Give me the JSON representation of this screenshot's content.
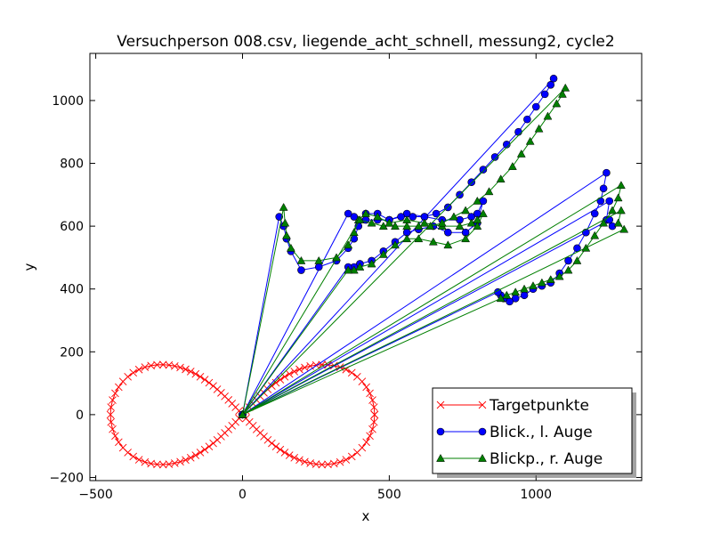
{
  "chart_data": {
    "type": "line",
    "title": "Versuchperson 008.csv, liegende_acht_schnell, messung2, cycle2",
    "xlabel": "x",
    "ylabel": "y",
    "xlim": [
      -520,
      1360
    ],
    "ylim": [
      -210,
      1150
    ],
    "xticks": [
      -500,
      0,
      500,
      1000
    ],
    "yticks": [
      -200,
      0,
      200,
      400,
      600,
      800,
      1000
    ],
    "tick_labels_x": [
      "−500",
      "0",
      "500",
      "1000"
    ],
    "tick_labels_y": [
      "−200",
      "0",
      "200",
      "400",
      "600",
      "800",
      "1000"
    ],
    "grid": false,
    "legend_position": "lower-right",
    "series": [
      {
        "name": "Targetpunkte",
        "color": "#ff0000",
        "marker": "x",
        "kind": "lemniscate",
        "a": 450,
        "points": 120
      },
      {
        "name": "Blick., l. Auge",
        "color": "#0000ff",
        "marker": "circle",
        "x": [
          0,
          125,
          140,
          150,
          165,
          200,
          260,
          320,
          360,
          380,
          395,
          420,
          460,
          500,
          560,
          620,
          680,
          740,
          780,
          800,
          820,
          800,
          760,
          700,
          650,
          600,
          560,
          520,
          480,
          440,
          400,
          380,
          360,
          0,
          1060,
          1050,
          1030,
          1000,
          970,
          940,
          900,
          860,
          820,
          780,
          740,
          700,
          660,
          620,
          580,
          540,
          500,
          460,
          420,
          380,
          360,
          0,
          1240,
          1230,
          1220,
          1200,
          1170,
          1140,
          1110,
          1080,
          1050,
          1020,
          990,
          960,
          930,
          910,
          890,
          880,
          870,
          0,
          1250,
          1240,
          1260,
          1250,
          0
        ],
        "y": [
          0,
          630,
          600,
          560,
          520,
          460,
          470,
          490,
          530,
          560,
          600,
          640,
          640,
          620,
          640,
          630,
          620,
          620,
          630,
          640,
          680,
          610,
          580,
          580,
          600,
          590,
          580,
          550,
          520,
          490,
          480,
          470,
          470,
          0,
          1070,
          1050,
          1020,
          980,
          940,
          900,
          860,
          820,
          780,
          740,
          700,
          660,
          640,
          630,
          630,
          630,
          620,
          620,
          620,
          630,
          640,
          0,
          770,
          720,
          680,
          640,
          580,
          530,
          490,
          450,
          420,
          410,
          400,
          380,
          370,
          360,
          370,
          380,
          390,
          0,
          680,
          620,
          600,
          620,
          0
        ]
      },
      {
        "name": "Blickp., r. Auge",
        "color": "#007f00",
        "marker": "triangle",
        "x": [
          0,
          140,
          145,
          150,
          165,
          200,
          260,
          320,
          360,
          380,
          395,
          420,
          460,
          500,
          560,
          620,
          680,
          740,
          780,
          800,
          820,
          800,
          760,
          700,
          650,
          600,
          560,
          520,
          480,
          440,
          400,
          380,
          360,
          0,
          1100,
          1090,
          1070,
          1040,
          1010,
          980,
          950,
          920,
          880,
          840,
          800,
          760,
          720,
          680,
          640,
          600,
          560,
          520,
          480,
          440,
          400,
          0,
          1290,
          1280,
          1260,
          1230,
          1200,
          1170,
          1140,
          1110,
          1080,
          1050,
          1020,
          990,
          960,
          930,
          900,
          880,
          0,
          1290,
          1280,
          1300,
          0
        ],
        "y": [
          0,
          660,
          610,
          570,
          530,
          490,
          490,
          500,
          540,
          580,
          620,
          640,
          630,
          610,
          620,
          610,
          600,
          600,
          610,
          620,
          640,
          600,
          560,
          540,
          550,
          560,
          560,
          540,
          510,
          480,
          470,
          460,
          460,
          0,
          1040,
          1020,
          990,
          950,
          910,
          870,
          830,
          790,
          750,
          710,
          680,
          650,
          630,
          610,
          600,
          600,
          600,
          600,
          600,
          610,
          620,
          0,
          730,
          690,
          650,
          610,
          570,
          530,
          490,
          460,
          440,
          430,
          420,
          410,
          400,
          390,
          380,
          370,
          0,
          650,
          610,
          590,
          0
        ]
      }
    ]
  }
}
